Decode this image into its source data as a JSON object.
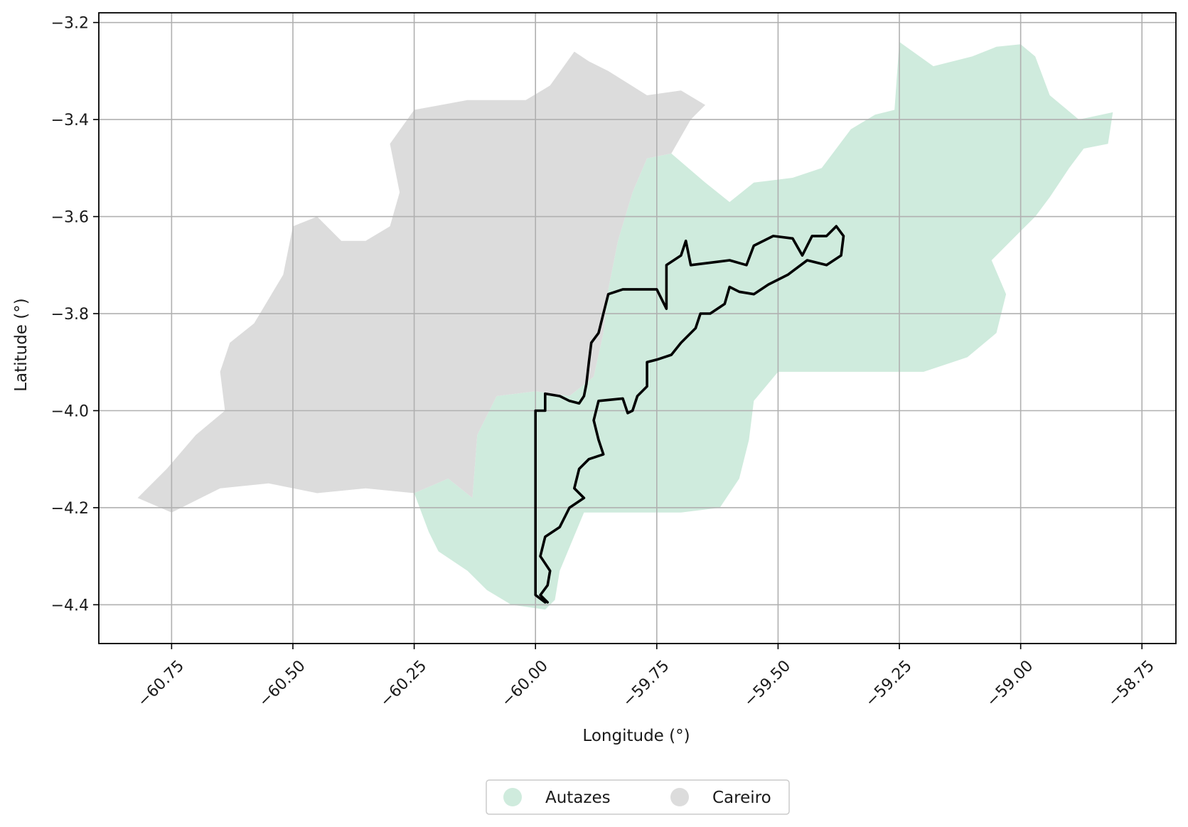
{
  "chart_data": {
    "type": "map",
    "xlabel": "Longitude (°)",
    "ylabel": "Latitude (°)",
    "xlim": [
      -60.9,
      -58.68
    ],
    "ylim": [
      -4.48,
      -3.18
    ],
    "x_ticks": [
      -60.75,
      -60.5,
      -60.25,
      -60.0,
      -59.75,
      -59.5,
      -59.25,
      -59.0,
      -58.75
    ],
    "x_tick_labels": [
      "−60.75",
      "−60.50",
      "−60.25",
      "−60.00",
      "−59.75",
      "−59.50",
      "−59.25",
      "−59.00",
      "−58.75"
    ],
    "y_ticks": [
      -3.2,
      -3.4,
      -3.6,
      -3.8,
      -4.0,
      -4.2,
      -4.4
    ],
    "y_tick_labels": [
      "−3.2",
      "−3.4",
      "−3.6",
      "−3.8",
      "−4.0",
      "−4.2",
      "−4.4"
    ],
    "grid": true,
    "legend_position": "bottom-center",
    "regions": [
      {
        "name": "Autazes",
        "color": "#cfebdd",
        "polygon": [
          [
            -59.25,
            -3.24
          ],
          [
            -59.18,
            -3.29
          ],
          [
            -59.1,
            -3.27
          ],
          [
            -59.05,
            -3.25
          ],
          [
            -59.0,
            -3.245
          ],
          [
            -58.97,
            -3.27
          ],
          [
            -58.94,
            -3.35
          ],
          [
            -58.88,
            -3.4
          ],
          [
            -58.81,
            -3.385
          ],
          [
            -58.82,
            -3.45
          ],
          [
            -58.87,
            -3.46
          ],
          [
            -58.9,
            -3.5
          ],
          [
            -58.94,
            -3.56
          ],
          [
            -58.97,
            -3.6
          ],
          [
            -59.0,
            -3.63
          ],
          [
            -59.06,
            -3.69
          ],
          [
            -59.03,
            -3.76
          ],
          [
            -59.05,
            -3.84
          ],
          [
            -59.11,
            -3.89
          ],
          [
            -59.2,
            -3.92
          ],
          [
            -59.5,
            -3.92
          ],
          [
            -59.55,
            -3.98
          ],
          [
            -59.56,
            -4.06
          ],
          [
            -59.58,
            -4.14
          ],
          [
            -59.62,
            -4.2
          ],
          [
            -59.7,
            -4.21
          ],
          [
            -59.8,
            -4.21
          ],
          [
            -59.9,
            -4.21
          ],
          [
            -59.95,
            -4.33
          ],
          [
            -59.96,
            -4.39
          ],
          [
            -59.98,
            -4.41
          ],
          [
            -60.05,
            -4.4
          ],
          [
            -60.1,
            -4.37
          ],
          [
            -60.14,
            -4.33
          ],
          [
            -60.2,
            -4.29
          ],
          [
            -60.22,
            -4.25
          ],
          [
            -60.25,
            -4.17
          ],
          [
            -60.18,
            -4.14
          ],
          [
            -60.13,
            -4.18
          ],
          [
            -60.12,
            -4.05
          ],
          [
            -60.08,
            -3.97
          ],
          [
            -60.0,
            -3.96
          ],
          [
            -59.93,
            -3.97
          ],
          [
            -59.88,
            -3.93
          ],
          [
            -59.86,
            -3.84
          ],
          [
            -59.85,
            -3.75
          ],
          [
            -59.83,
            -3.65
          ],
          [
            -59.8,
            -3.55
          ],
          [
            -59.77,
            -3.48
          ],
          [
            -59.72,
            -3.47
          ],
          [
            -59.65,
            -3.53
          ],
          [
            -59.6,
            -3.57
          ],
          [
            -59.55,
            -3.53
          ],
          [
            -59.47,
            -3.52
          ],
          [
            -59.41,
            -3.5
          ],
          [
            -59.35,
            -3.42
          ],
          [
            -59.3,
            -3.39
          ],
          [
            -59.26,
            -3.38
          ]
        ]
      },
      {
        "name": "Careiro",
        "color": "#dcdcdc",
        "polygon": [
          [
            -60.82,
            -4.18
          ],
          [
            -60.75,
            -4.21
          ],
          [
            -60.65,
            -4.16
          ],
          [
            -60.55,
            -4.15
          ],
          [
            -60.45,
            -4.17
          ],
          [
            -60.35,
            -4.16
          ],
          [
            -60.25,
            -4.17
          ],
          [
            -60.18,
            -4.14
          ],
          [
            -60.13,
            -4.18
          ],
          [
            -60.12,
            -4.05
          ],
          [
            -60.08,
            -3.97
          ],
          [
            -60.0,
            -3.96
          ],
          [
            -59.93,
            -3.97
          ],
          [
            -59.88,
            -3.93
          ],
          [
            -59.86,
            -3.84
          ],
          [
            -59.85,
            -3.75
          ],
          [
            -59.83,
            -3.65
          ],
          [
            -59.8,
            -3.55
          ],
          [
            -59.77,
            -3.48
          ],
          [
            -59.72,
            -3.47
          ],
          [
            -59.68,
            -3.4
          ],
          [
            -59.65,
            -3.37
          ],
          [
            -59.7,
            -3.34
          ],
          [
            -59.77,
            -3.35
          ],
          [
            -59.85,
            -3.3
          ],
          [
            -59.89,
            -3.28
          ],
          [
            -59.92,
            -3.26
          ],
          [
            -59.97,
            -3.33
          ],
          [
            -60.02,
            -3.36
          ],
          [
            -60.14,
            -3.36
          ],
          [
            -60.25,
            -3.38
          ],
          [
            -60.3,
            -3.45
          ],
          [
            -60.28,
            -3.55
          ],
          [
            -60.3,
            -3.62
          ],
          [
            -60.35,
            -3.65
          ],
          [
            -60.4,
            -3.65
          ],
          [
            -60.45,
            -3.6
          ],
          [
            -60.5,
            -3.62
          ],
          [
            -60.52,
            -3.72
          ],
          [
            -60.58,
            -3.82
          ],
          [
            -60.63,
            -3.86
          ],
          [
            -60.65,
            -3.92
          ],
          [
            -60.64,
            -4.0
          ],
          [
            -60.7,
            -4.05
          ],
          [
            -60.76,
            -4.12
          ]
        ]
      }
    ],
    "boundary_line": {
      "color": "#000000",
      "points": [
        [
          -59.98,
          -4.395
        ],
        [
          -60.0,
          -4.38
        ],
        [
          -60.0,
          -4.3
        ],
        [
          -60.0,
          -4.2
        ],
        [
          -60.0,
          -4.1
        ],
        [
          -60.0,
          -4.0
        ],
        [
          -59.98,
          -4.0
        ],
        [
          -59.98,
          -3.965
        ],
        [
          -59.95,
          -3.97
        ],
        [
          -59.93,
          -3.98
        ],
        [
          -59.91,
          -3.985
        ],
        [
          -59.9,
          -3.97
        ],
        [
          -59.895,
          -3.945
        ],
        [
          -59.89,
          -3.9
        ],
        [
          -59.885,
          -3.86
        ],
        [
          -59.87,
          -3.84
        ],
        [
          -59.86,
          -3.8
        ],
        [
          -59.85,
          -3.76
        ],
        [
          -59.82,
          -3.75
        ],
        [
          -59.79,
          -3.75
        ],
        [
          -59.75,
          -3.75
        ],
        [
          -59.73,
          -3.79
        ],
        [
          -59.73,
          -3.7
        ],
        [
          -59.7,
          -3.68
        ],
        [
          -59.69,
          -3.65
        ],
        [
          -59.68,
          -3.7
        ],
        [
          -59.6,
          -3.69
        ],
        [
          -59.565,
          -3.7
        ],
        [
          -59.55,
          -3.66
        ],
        [
          -59.51,
          -3.64
        ],
        [
          -59.47,
          -3.645
        ],
        [
          -59.45,
          -3.68
        ],
        [
          -59.43,
          -3.64
        ],
        [
          -59.4,
          -3.64
        ],
        [
          -59.38,
          -3.62
        ],
        [
          -59.365,
          -3.64
        ],
        [
          -59.37,
          -3.68
        ],
        [
          -59.4,
          -3.7
        ],
        [
          -59.44,
          -3.69
        ],
        [
          -59.48,
          -3.72
        ],
        [
          -59.52,
          -3.74
        ],
        [
          -59.55,
          -3.76
        ],
        [
          -59.58,
          -3.755
        ],
        [
          -59.6,
          -3.745
        ],
        [
          -59.61,
          -3.78
        ],
        [
          -59.64,
          -3.8
        ],
        [
          -59.66,
          -3.8
        ],
        [
          -59.67,
          -3.83
        ],
        [
          -59.7,
          -3.86
        ],
        [
          -59.72,
          -3.885
        ],
        [
          -59.75,
          -3.895
        ],
        [
          -59.77,
          -3.9
        ],
        [
          -59.77,
          -3.95
        ],
        [
          -59.79,
          -3.97
        ],
        [
          -59.8,
          -4.0
        ],
        [
          -59.81,
          -4.005
        ],
        [
          -59.82,
          -3.975
        ],
        [
          -59.87,
          -3.98
        ],
        [
          -59.88,
          -4.02
        ],
        [
          -59.87,
          -4.06
        ],
        [
          -59.86,
          -4.09
        ],
        [
          -59.89,
          -4.1
        ],
        [
          -59.91,
          -4.12
        ],
        [
          -59.92,
          -4.16
        ],
        [
          -59.9,
          -4.18
        ],
        [
          -59.93,
          -4.2
        ],
        [
          -59.95,
          -4.24
        ],
        [
          -59.98,
          -4.26
        ],
        [
          -59.99,
          -4.3
        ],
        [
          -59.97,
          -4.33
        ],
        [
          -59.975,
          -4.36
        ],
        [
          -59.99,
          -4.38
        ],
        [
          -59.975,
          -4.395
        ]
      ]
    }
  },
  "legend": {
    "items": [
      {
        "label": "Autazes",
        "color": "#cfebdd"
      },
      {
        "label": "Careiro",
        "color": "#dcdcdc"
      }
    ]
  }
}
